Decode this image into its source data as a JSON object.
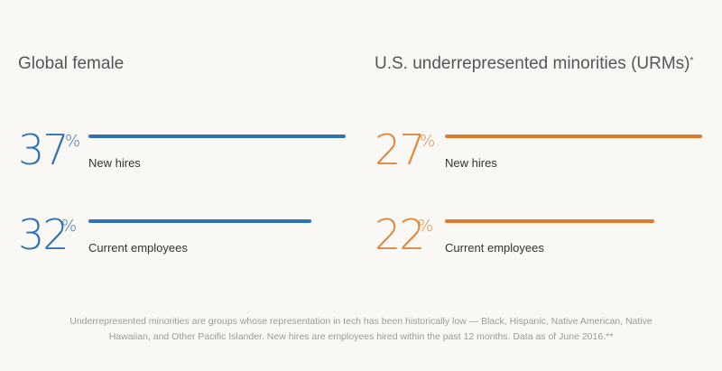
{
  "panels": [
    {
      "title": "Global female",
      "title_suffix": "",
      "color": "#2f72b5",
      "metrics": [
        {
          "value": "37",
          "unit": "%",
          "label": "New hires"
        },
        {
          "value": "32",
          "unit": "%",
          "label": "Current employees"
        }
      ]
    },
    {
      "title": "U.S. underrepresented minorities (URMs)",
      "title_suffix": "*",
      "color": "#e07a2b",
      "metrics": [
        {
          "value": "27",
          "unit": "%",
          "label": "New hires"
        },
        {
          "value": "22",
          "unit": "%",
          "label": "Current employees"
        }
      ]
    }
  ],
  "chart_data": [
    {
      "type": "bar",
      "title": "Global female",
      "categories": [
        "New hires",
        "Current employees"
      ],
      "values": [
        37,
        32
      ],
      "color": "#2f72b5",
      "bar_fraction_of_max": [
        1.0,
        0.865
      ]
    },
    {
      "type": "bar",
      "title": "U.S. underrepresented minorities (URMs)*",
      "categories": [
        "New hires",
        "Current employees"
      ],
      "values": [
        27,
        22
      ],
      "color": "#e07a2b",
      "bar_fraction_of_max": [
        1.0,
        0.815
      ]
    }
  ],
  "footnote": {
    "line1": "Underrepresented minorities are groups whose representation in tech has been historically low — Black, Hispanic, Native American, Native",
    "line2": "Hawaiian, and Other Pacific Islander. New hires are employees hired within the past 12 months. Data as of June 2016.**"
  }
}
